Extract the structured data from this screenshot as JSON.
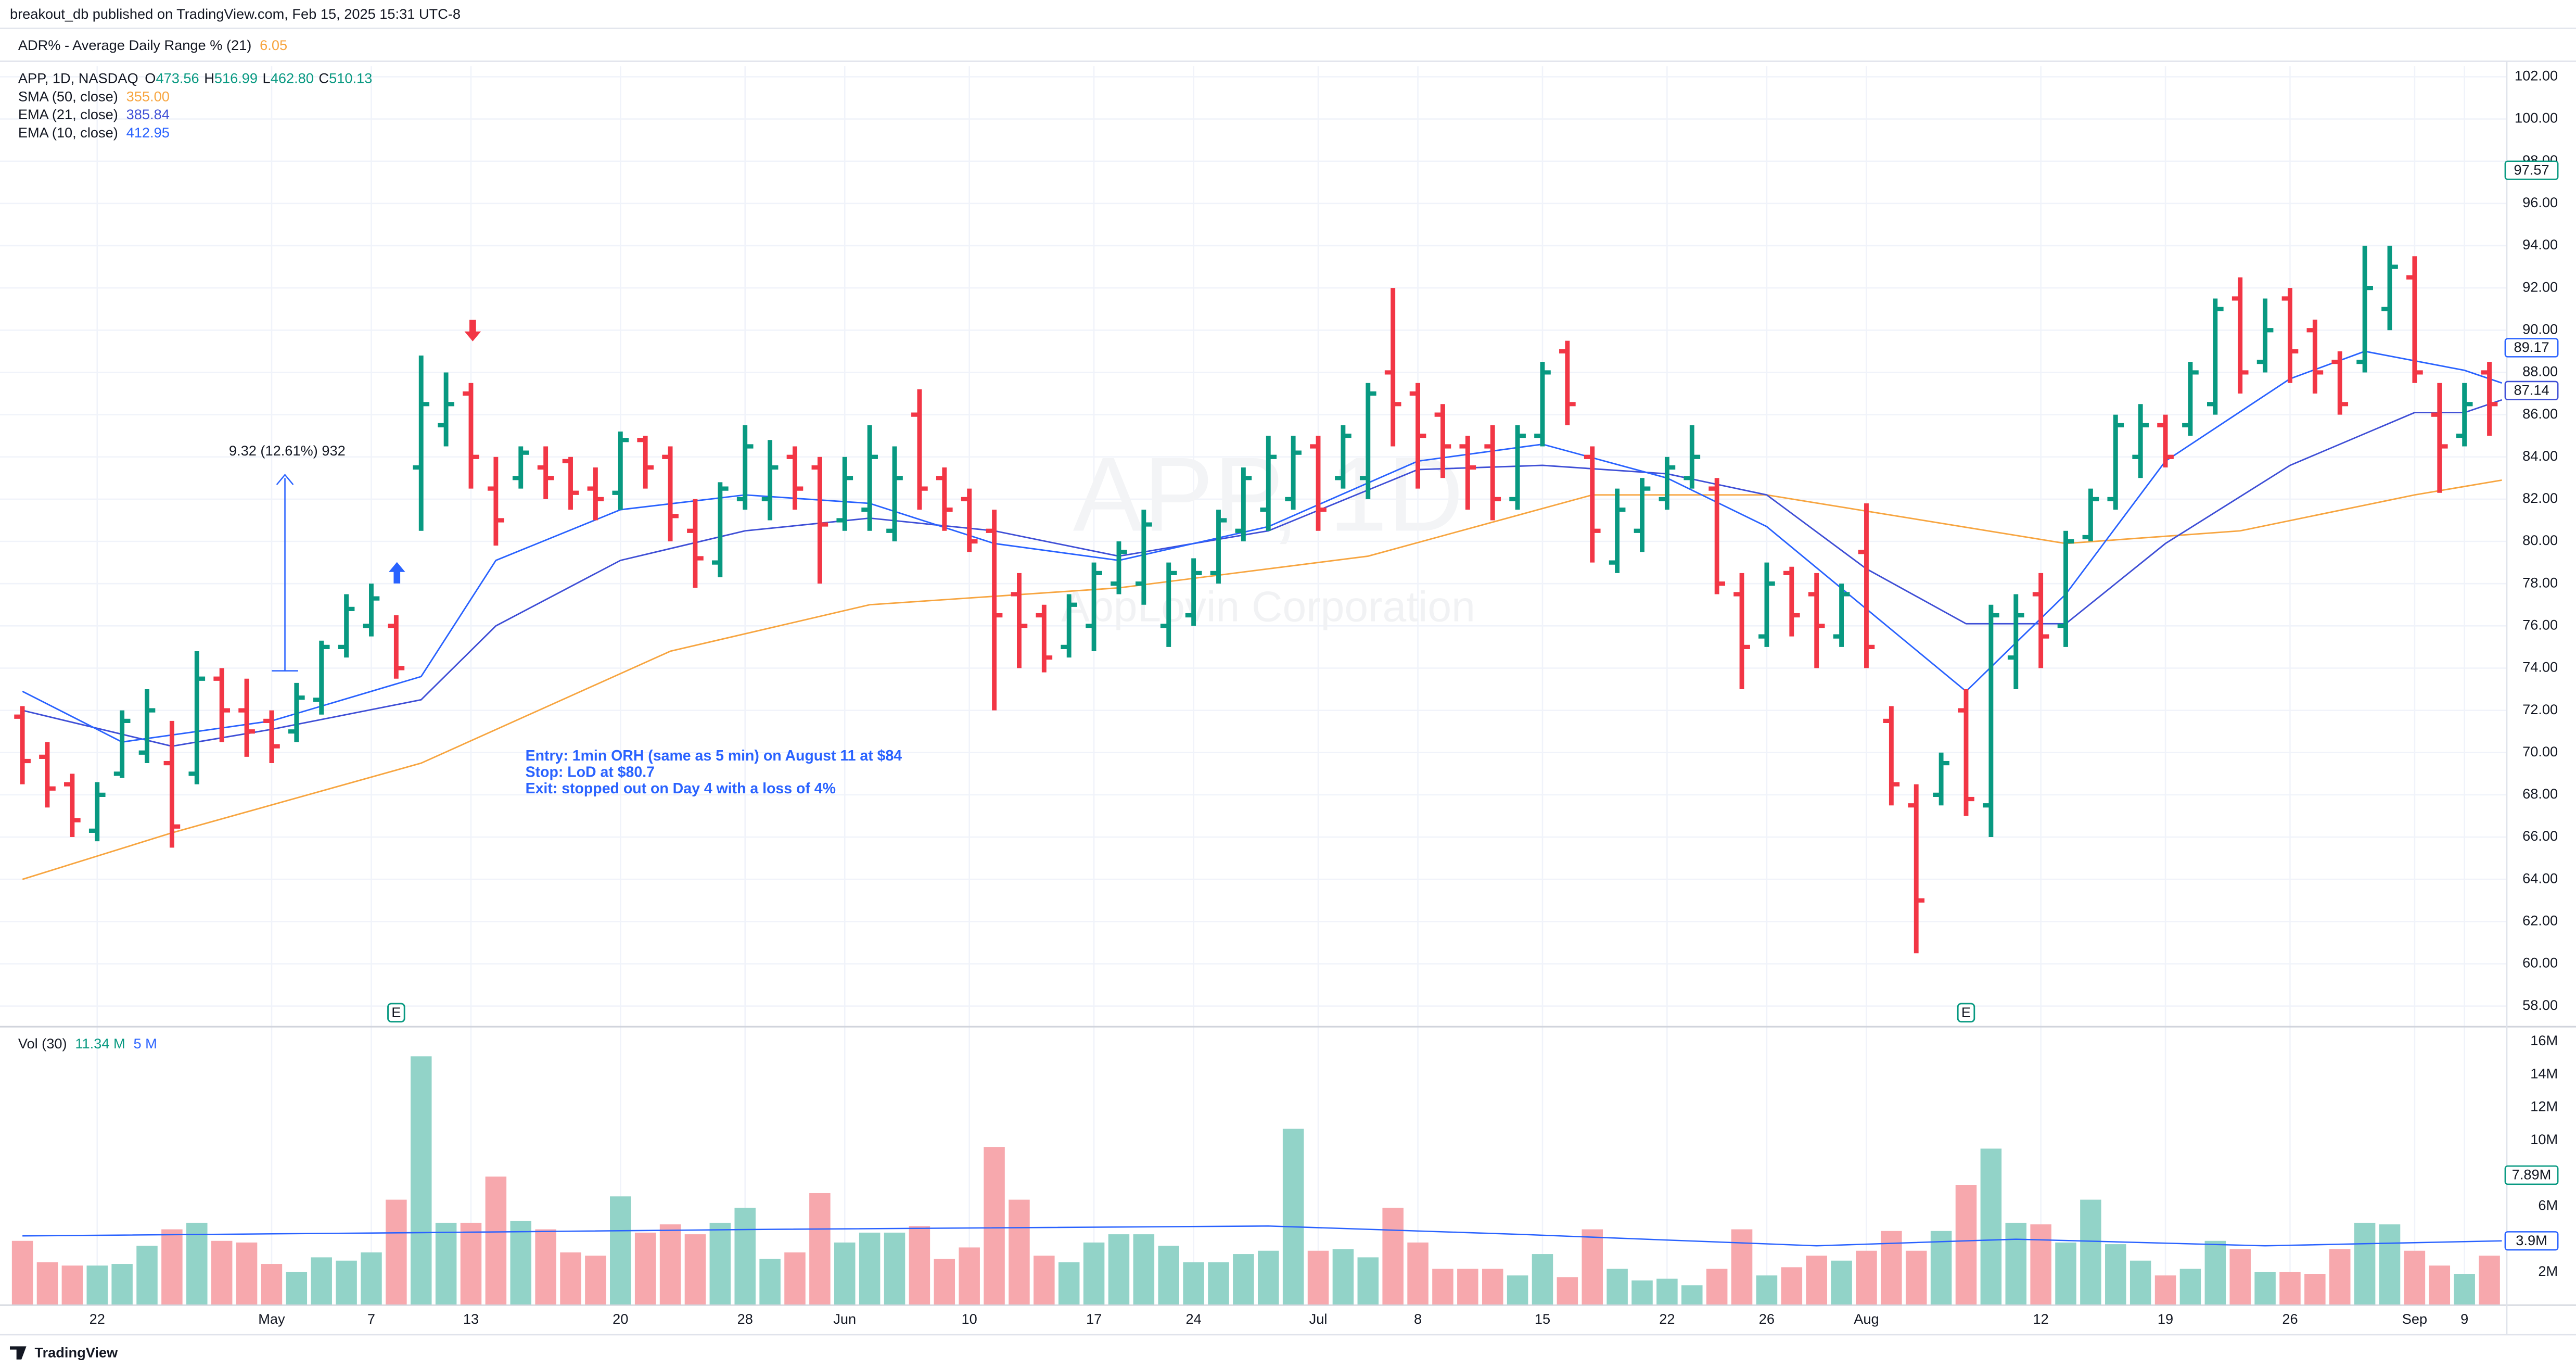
{
  "header": {
    "publisher": "breakout_db published on TradingView.com, Feb 15, 2025 15:31 UTC-8",
    "indicator": {
      "name": "ADR% - Average Daily Range % (21)",
      "value": "6.05"
    }
  },
  "legend": {
    "symbol": "APP, 1D, NASDAQ",
    "ohlc": [
      {
        "letter": "O",
        "value": "473.56"
      },
      {
        "letter": "H",
        "value": "516.99"
      },
      {
        "letter": "L",
        "value": "462.80"
      },
      {
        "letter": "C",
        "value": "510.13"
      }
    ],
    "indicators": [
      {
        "name": "SMA (50, close)",
        "value": "355.00",
        "color": "#f7a540"
      },
      {
        "name": "EMA (21, close)",
        "value": "385.84",
        "color": "#3f4fd6"
      },
      {
        "name": "EMA (10, close)",
        "value": "412.95",
        "color": "#2962ff"
      }
    ]
  },
  "chart_data": {
    "type": "ohlc",
    "watermark": {
      "symbol": "APP, 1D",
      "name": "AppLovin Corporation"
    },
    "up_color": "#089981",
    "down_color": "#f23645",
    "grid": true,
    "xlim": [
      -0.9,
      99.7
    ],
    "ylim": [
      57.1,
      102.5
    ],
    "xticks": [
      {
        "value": 3,
        "label": "22"
      },
      {
        "value": 10,
        "label": "May"
      },
      {
        "value": 14,
        "label": "7"
      },
      {
        "value": 18,
        "label": "13"
      },
      {
        "value": 24,
        "label": "20"
      },
      {
        "value": 29,
        "label": "28"
      },
      {
        "value": 33,
        "label": "Jun"
      },
      {
        "value": 38,
        "label": "10"
      },
      {
        "value": 43,
        "label": "17"
      },
      {
        "value": 47,
        "label": "24"
      },
      {
        "value": 52,
        "label": "Jul"
      },
      {
        "value": 56,
        "label": "8"
      },
      {
        "value": 61,
        "label": "15"
      },
      {
        "value": 66,
        "label": "22"
      },
      {
        "value": 70,
        "label": "26"
      },
      {
        "value": 74,
        "label": "Aug"
      },
      {
        "value": 81,
        "label": "12"
      },
      {
        "value": 86,
        "label": "19"
      },
      {
        "value": 91,
        "label": "26"
      },
      {
        "value": 96,
        "label": "Sep"
      },
      {
        "value": 98,
        "label": "9"
      }
    ],
    "yticks": [
      {
        "value": 58,
        "label": "58.00"
      },
      {
        "value": 60,
        "label": "60.00"
      },
      {
        "value": 62,
        "label": "62.00"
      },
      {
        "value": 64,
        "label": "64.00"
      },
      {
        "value": 66,
        "label": "66.00"
      },
      {
        "value": 68,
        "label": "68.00"
      },
      {
        "value": 70,
        "label": "70.00"
      },
      {
        "value": 72,
        "label": "72.00"
      },
      {
        "value": 74,
        "label": "74.00"
      },
      {
        "value": 76,
        "label": "76.00"
      },
      {
        "value": 78,
        "label": "78.00"
      },
      {
        "value": 80,
        "label": "80.00"
      },
      {
        "value": 82,
        "label": "82.00"
      },
      {
        "value": 84,
        "label": "84.00"
      },
      {
        "value": 86,
        "label": "86.00"
      },
      {
        "value": 88,
        "label": "88.00"
      },
      {
        "value": 90,
        "label": "90.00"
      },
      {
        "value": 92,
        "label": "92.00"
      },
      {
        "value": 94,
        "label": "94.00"
      },
      {
        "value": 96,
        "label": "96.00"
      },
      {
        "value": 98,
        "label": "98.00"
      },
      {
        "value": 100,
        "label": "100.00"
      },
      {
        "value": 102,
        "label": "102.00"
      }
    ],
    "open": [
      71.7,
      69.8,
      68.5,
      66.3,
      69.0,
      70.0,
      69.5,
      69.0,
      73.5,
      72.0,
      71.5,
      71.0,
      72.5,
      75.0,
      76.0,
      76.0,
      83.5,
      85.5,
      87.0,
      82.5,
      83.0,
      83.5,
      83.8,
      82.5,
      82.3,
      84.8,
      84.0,
      80.5,
      79.0,
      82.0,
      82.0,
      84.0,
      83.5,
      81.0,
      81.5,
      80.5,
      86.0,
      83.0,
      82.0,
      80.5,
      77.5,
      76.5,
      75.0,
      76.0,
      78.0,
      78.0,
      76.0,
      76.5,
      78.5,
      80.5,
      81.5,
      82.0,
      84.5,
      83.0,
      83.0,
      88.0,
      87.0,
      86.0,
      84.5,
      84.5,
      82.0,
      85.0,
      89.0,
      84.0,
      79.0,
      80.5,
      82.0,
      83.0,
      82.5,
      77.5,
      75.5,
      78.5,
      77.5,
      75.5,
      79.5,
      71.5,
      67.5,
      68.0,
      72.0,
      67.5,
      74.5,
      77.5,
      76.0,
      80.2,
      82.0,
      84.0,
      85.5,
      85.5,
      86.5,
      91.5,
      88.5,
      91.5,
      90.0,
      88.5,
      88.5,
      91.0,
      92.5,
      86.0,
      85.0,
      88.0
    ],
    "high": [
      72.2,
      70.5,
      69.0,
      68.6,
      72.0,
      73.0,
      71.5,
      74.8,
      74.0,
      73.5,
      72.0,
      73.3,
      75.3,
      77.5,
      78.0,
      76.5,
      88.8,
      88.0,
      87.5,
      84.0,
      84.5,
      84.5,
      84.0,
      83.5,
      85.2,
      85.0,
      84.5,
      82.0,
      82.8,
      85.5,
      84.8,
      84.5,
      84.0,
      84.0,
      85.5,
      84.5,
      87.2,
      83.5,
      82.5,
      81.5,
      78.5,
      77.0,
      77.5,
      79.0,
      80.0,
      81.5,
      79.0,
      79.2,
      81.5,
      83.5,
      85.0,
      85.0,
      85.0,
      85.5,
      87.5,
      92.0,
      87.5,
      86.5,
      85.0,
      85.5,
      85.5,
      88.5,
      89.5,
      84.5,
      82.5,
      83.0,
      84.0,
      85.5,
      83.0,
      78.5,
      79.0,
      78.8,
      78.5,
      78.0,
      81.8,
      72.2,
      68.5,
      70.0,
      73.0,
      77.0,
      77.5,
      78.5,
      80.5,
      82.5,
      86.0,
      86.5,
      86.0,
      88.5,
      91.5,
      92.5,
      91.5,
      92.0,
      90.5,
      89.0,
      94.0,
      94.0,
      93.5,
      87.5,
      87.5,
      88.5
    ],
    "low": [
      68.5,
      67.4,
      66.0,
      65.8,
      68.8,
      69.5,
      65.5,
      68.5,
      70.5,
      69.8,
      69.5,
      70.5,
      71.8,
      74.5,
      75.5,
      73.5,
      80.5,
      84.5,
      82.5,
      79.8,
      82.5,
      82.0,
      81.5,
      81.0,
      81.5,
      82.5,
      80.0,
      77.8,
      78.3,
      81.5,
      81.0,
      81.5,
      78.0,
      80.5,
      80.5,
      80.0,
      81.5,
      80.5,
      79.5,
      72.0,
      74.0,
      73.8,
      74.5,
      74.8,
      77.5,
      77.0,
      75.0,
      76.0,
      78.0,
      80.0,
      80.5,
      81.5,
      80.5,
      82.5,
      82.0,
      84.5,
      82.5,
      83.0,
      81.5,
      81.0,
      81.5,
      84.5,
      85.5,
      79.0,
      78.5,
      79.5,
      81.5,
      82.5,
      77.5,
      73.0,
      75.0,
      75.5,
      74.0,
      75.0,
      74.0,
      67.5,
      60.5,
      67.5,
      67.0,
      66.0,
      73.0,
      74.0,
      75.0,
      80.0,
      81.5,
      83.0,
      83.5,
      85.0,
      86.0,
      87.0,
      88.0,
      87.5,
      87.0,
      86.0,
      88.0,
      90.0,
      87.5,
      82.3,
      84.5,
      85.0
    ],
    "close": [
      69.6,
      68.3,
      66.8,
      68.0,
      71.5,
      72.0,
      66.5,
      73.5,
      72.0,
      71.0,
      70.3,
      72.6,
      75.0,
      76.8,
      77.3,
      74.0,
      86.5,
      86.5,
      84.0,
      81.0,
      84.2,
      83.0,
      82.3,
      82.0,
      84.8,
      83.5,
      81.2,
      79.2,
      82.5,
      84.5,
      83.5,
      82.5,
      80.8,
      83.0,
      84.0,
      83.0,
      82.5,
      81.5,
      80.0,
      76.5,
      76.0,
      74.5,
      77.0,
      78.5,
      79.5,
      80.8,
      78.5,
      78.5,
      81.0,
      83.0,
      84.0,
      84.2,
      81.5,
      85.0,
      87.0,
      86.5,
      85.0,
      84.5,
      83.5,
      82.0,
      85.0,
      88.0,
      86.5,
      80.5,
      81.5,
      82.5,
      83.5,
      84.0,
      78.0,
      75.0,
      78.0,
      76.5,
      76.0,
      77.5,
      75.0,
      68.5,
      63.0,
      69.5,
      67.8,
      76.5,
      76.5,
      75.5,
      80.0,
      82.0,
      85.5,
      85.5,
      84.0,
      88.0,
      91.0,
      88.0,
      90.0,
      89.0,
      88.0,
      86.5,
      92.0,
      93.0,
      88.0,
      84.5,
      86.5,
      86.5
    ],
    "lines": [
      {
        "name": "SMA (50, close)",
        "color": "#f7a540",
        "width": 0.9,
        "x": [
          0,
          6,
          16,
          26,
          34,
          44,
          54,
          63,
          70,
          82,
          89,
          96,
          99.5
        ],
        "values": [
          64.0,
          66.2,
          69.5,
          74.8,
          77.0,
          77.8,
          79.3,
          82.2,
          82.2,
          79.9,
          80.5,
          82.2,
          82.9
        ]
      },
      {
        "name": "EMA (21, close)",
        "color": "#3f4fd6",
        "width": 0.9,
        "x": [
          0,
          6,
          10,
          16,
          19,
          24,
          29,
          34,
          39,
          44,
          50,
          56,
          61,
          66,
          70,
          74,
          78,
          82,
          86,
          91,
          96,
          98,
          99.5
        ],
        "values": [
          72.0,
          70.3,
          71.1,
          72.5,
          76.0,
          79.1,
          80.5,
          81.1,
          80.5,
          79.3,
          80.5,
          83.4,
          83.6,
          83.2,
          82.2,
          78.7,
          76.1,
          76.1,
          79.9,
          83.6,
          86.1,
          86.1,
          86.7
        ]
      },
      {
        "name": "EMA (10, close)",
        "color": "#2962ff",
        "width": 0.9,
        "x": [
          0,
          4,
          10,
          16,
          19,
          24,
          29,
          34,
          39,
          44,
          50,
          56,
          61,
          66,
          70,
          74,
          78,
          82,
          86,
          91,
          94,
          98,
          99.5
        ],
        "values": [
          72.9,
          70.5,
          71.5,
          73.6,
          79.1,
          81.5,
          82.2,
          81.8,
          79.9,
          79.1,
          80.7,
          83.8,
          84.6,
          83.0,
          80.7,
          76.8,
          72.9,
          77.5,
          83.8,
          87.7,
          89.0,
          88.1,
          87.5
        ]
      }
    ],
    "price_labels": [
      {
        "value": 97.57,
        "color": "#089981"
      },
      {
        "value": 89.17,
        "color": "#2962ff"
      },
      {
        "value": 87.14,
        "color": "#3f4fd6"
      }
    ],
    "earnings": [
      {
        "index": 15,
        "label": "E"
      },
      {
        "index": 78,
        "label": "E"
      }
    ],
    "annotations": {
      "measure": "9.32 (12.61%) 932",
      "notes": [
        "Entry: 1min ORH (same as 5 min) on August 11 at $84",
        "Stop: LoD at $80.7",
        "Exit: stopped out on Day 4 with a loss of 4%"
      ]
    },
    "volume": {
      "legend": {
        "name": "Vol (30)",
        "value": "11.34 M",
        "ma": "5 M"
      },
      "up_color": "#92d3c8",
      "down_color": "#f7a8ad",
      "ylim": [
        0,
        16.8
      ],
      "yticks": [
        {
          "value": 2,
          "label": "2M"
        },
        {
          "value": 4,
          "label": "4M"
        },
        {
          "value": 6,
          "label": "6M"
        },
        {
          "value": 8,
          "label": "8M"
        },
        {
          "value": 10,
          "label": "10M"
        },
        {
          "value": 12,
          "label": "12M"
        },
        {
          "value": 14,
          "label": "14M"
        },
        {
          "value": 16,
          "label": "16M"
        }
      ],
      "values": [
        3.9,
        2.6,
        2.4,
        2.4,
        2.5,
        3.6,
        4.6,
        5.0,
        3.9,
        3.8,
        2.5,
        2.0,
        2.9,
        2.7,
        3.2,
        6.4,
        15.1,
        5.0,
        5.0,
        7.8,
        5.1,
        4.6,
        3.2,
        3.0,
        6.6,
        4.4,
        4.9,
        4.3,
        5.0,
        5.9,
        2.8,
        3.2,
        6.8,
        3.8,
        4.4,
        4.4,
        4.8,
        2.8,
        3.5,
        9.6,
        6.4,
        3.0,
        2.6,
        3.8,
        4.3,
        4.3,
        3.6,
        2.6,
        2.6,
        3.1,
        3.3,
        10.7,
        3.3,
        3.4,
        2.9,
        5.9,
        3.8,
        2.2,
        2.2,
        2.2,
        1.8,
        3.1,
        1.7,
        4.6,
        2.2,
        1.5,
        1.6,
        1.2,
        2.2,
        4.6,
        1.8,
        2.3,
        3.0,
        2.7,
        3.3,
        4.5,
        3.3,
        4.5,
        7.3,
        9.5,
        5.0,
        4.9,
        3.8,
        6.4,
        3.7,
        2.7,
        1.8,
        2.2,
        3.9,
        3.4,
        2.0,
        2.0,
        1.9,
        3.4,
        5.0,
        4.9,
        3.3,
        2.4,
        1.9,
        3.0
      ],
      "ma": {
        "color": "#2962ff",
        "x": [
          0,
          16,
          30,
          50,
          60,
          72,
          80,
          90,
          99.5
        ],
        "values": [
          4.2,
          4.4,
          4.6,
          4.8,
          4.3,
          3.6,
          4.0,
          3.6,
          3.9
        ]
      },
      "labels": [
        {
          "value": 7.89,
          "label": "7.89M",
          "color": "#089981"
        },
        {
          "value": 3.9,
          "label": "3.9M",
          "color": "#2962ff"
        }
      ]
    }
  },
  "footer": {
    "brand": "TradingView"
  }
}
